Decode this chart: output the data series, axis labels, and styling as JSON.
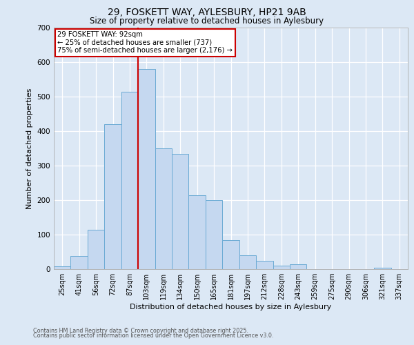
{
  "title_line1": "29, FOSKETT WAY, AYLESBURY, HP21 9AB",
  "title_line2": "Size of property relative to detached houses in Aylesbury",
  "xlabel": "Distribution of detached houses by size in Aylesbury",
  "ylabel": "Number of detached properties",
  "bar_labels": [
    "25sqm",
    "41sqm",
    "56sqm",
    "72sqm",
    "87sqm",
    "103sqm",
    "119sqm",
    "134sqm",
    "150sqm",
    "165sqm",
    "181sqm",
    "197sqm",
    "212sqm",
    "228sqm",
    "243sqm",
    "259sqm",
    "275sqm",
    "290sqm",
    "306sqm",
    "321sqm",
    "337sqm"
  ],
  "bar_values": [
    8,
    38,
    115,
    420,
    515,
    580,
    350,
    335,
    215,
    200,
    85,
    40,
    25,
    10,
    15,
    0,
    0,
    0,
    0,
    5,
    0
  ],
  "bar_color": "#c5d8f0",
  "bar_edge_color": "#6aaad4",
  "background_color": "#dce8f5",
  "grid_color": "#ffffff",
  "red_line_x": 4.5,
  "annotation_text": "29 FOSKETT WAY: 92sqm\n← 25% of detached houses are smaller (737)\n75% of semi-detached houses are larger (2,176) →",
  "annotation_box_color": "#ffffff",
  "annotation_box_edge": "#cc0000",
  "red_line_color": "#cc0000",
  "ylim": [
    0,
    700
  ],
  "yticks": [
    0,
    100,
    200,
    300,
    400,
    500,
    600,
    700
  ],
  "footer_line1": "Contains HM Land Registry data © Crown copyright and database right 2025.",
  "footer_line2": "Contains public sector information licensed under the Open Government Licence v3.0."
}
